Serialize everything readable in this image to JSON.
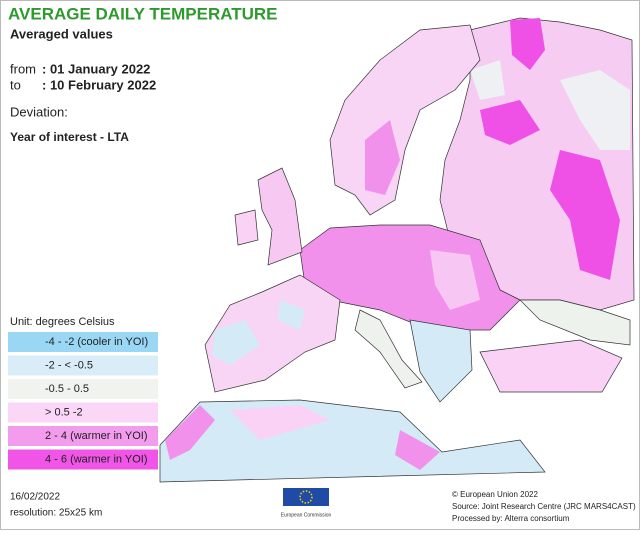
{
  "header": {
    "title": "AVERAGE DAILY TEMPERATURE",
    "subtitle": "Averaged values",
    "from_label": "from",
    "from_date": ": 01 January 2022",
    "to_label": "to",
    "to_date": ": 10 February 2022",
    "deviation": "Deviation:",
    "deviation_detail": "Year of interest - LTA"
  },
  "legend": {
    "unit": "Unit: degrees Celsius",
    "items": [
      {
        "label": "-4 - -2 (cooler in YOI)",
        "color": "#8fd3f4"
      },
      {
        "label": "-2 - < -0.5",
        "color": "#d4ebf7"
      },
      {
        "label": "-0.5 - 0.5",
        "color": "#eef2ec"
      },
      {
        "label": "> 0.5 -2",
        "color": "#f9d2f6"
      },
      {
        "label": "2 - 4 (warmer in YOI)",
        "color": "#f291eb"
      },
      {
        "label": "4 - 6 (warmer in YOI)",
        "color": "#ef43e6"
      }
    ]
  },
  "footer": {
    "date": "16/02/2022",
    "resolution": "resolution: 25x25 km",
    "logo_text": "European Commission",
    "copyright": "© European Union 2022",
    "source": "Source: Joint Research Centre (JRC MARS4CAST)",
    "processed": "Processed by: Alterra consortium"
  }
}
